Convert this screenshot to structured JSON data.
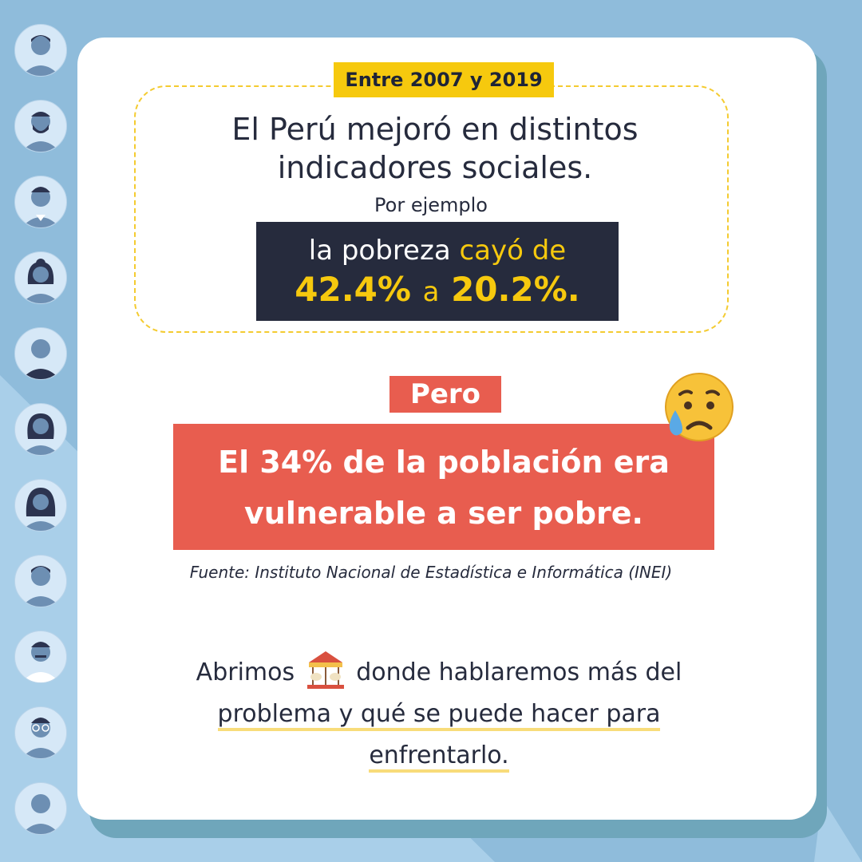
{
  "date_tag": "Entre 2007 y 2019",
  "headline": "El Perú mejoró en distintos indicadores sociales.",
  "example_label": "Por ejemplo",
  "poverty": {
    "prefix": "la pobreza",
    "verb": "cayó  de",
    "from": "42.4%",
    "connector": "a",
    "to": "20.2%."
  },
  "but_label": "Pero",
  "vulnerable_text": "El 34% de la población era vulnerable a ser pobre.",
  "source": "Fuente: Instituto Nacional de Estadística e Informática (INEI)",
  "cta": {
    "part1": "Abrimos",
    "part2": "donde hablaremos más del",
    "underline1": "problema y qué se puede hacer para",
    "underline2": "enfrentarlo."
  },
  "icons": {
    "sad_emoji": "crying-face-icon",
    "carousel": "carousel-icon"
  },
  "colors": {
    "background": "#8fbcdb",
    "yellow": "#f6c90e",
    "navy": "#262b3d",
    "red": "#e85d4f"
  }
}
